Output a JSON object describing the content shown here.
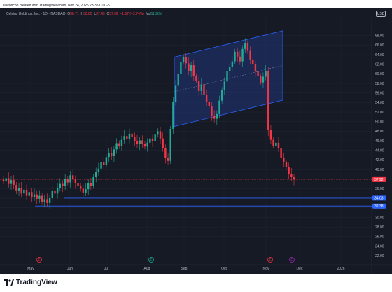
{
  "page": {
    "topline": "lavtoncho created with TradingView.com, Nov 24, 2025 23:35 UTC-5",
    "currency": "USD",
    "brand": "TradingView"
  },
  "legend": {
    "title": "Celsius Holdings, Inc. · 1D · NASDAQ",
    "open_label": "O",
    "open": "38.71",
    "high_label": "H",
    "high": "38.80",
    "low_label": "L",
    "low": "37.45",
    "close_label": "C",
    "close": "37.92",
    "change": "−1.07 (−2.74%)",
    "vol_label": "Vol",
    "vol": "11.28M"
  },
  "colors": {
    "up": "#22ab94",
    "down": "#f23645",
    "line": "#2962ff",
    "channel_fill": "#1e3a8a"
  },
  "chart_data": {
    "type": "candlestick",
    "title": "Celsius Holdings, Inc. · 1D · NASDAQ",
    "ylim": [
      21,
      70
    ],
    "y_ticks": [
      "68.00",
      "66.00",
      "64.00",
      "62.00",
      "60.00",
      "58.00",
      "56.00",
      "54.00",
      "52.00",
      "50.00",
      "48.00",
      "46.00",
      "44.00",
      "42.00",
      "40.00",
      "38.00",
      "36.00",
      "34.00",
      "32.00",
      "30.00",
      "28.00",
      "26.00",
      "24.00",
      "22.00"
    ],
    "x_ticks": [
      "May",
      "Jun",
      "Jul",
      "Aug",
      "Sep",
      "Oct",
      "Nov",
      "Dec",
      "2026"
    ],
    "price_labels": [
      {
        "value": 37.92,
        "text": "37.92",
        "color": "#f23645"
      },
      {
        "value": 34.03,
        "text": "34.03",
        "color": "#2962ff"
      },
      {
        "value": 32.38,
        "text": "32.38",
        "color": "#2962ff"
      }
    ],
    "horizontal_lines": [
      34.03,
      32.38
    ],
    "channel": {
      "upper": [
        63.5,
        69.0
      ],
      "lower": [
        49.0,
        54.5
      ]
    },
    "event_markers": [
      "E",
      "E",
      "E",
      "E",
      "⚡"
    ],
    "closes": [
      37.5,
      38.2,
      37.0,
      37.8,
      36.8,
      35.5,
      36.2,
      35.0,
      35.8,
      34.5,
      35.3,
      34.2,
      34.8,
      33.9,
      34.5,
      33.2,
      33.8,
      33.0,
      34.0,
      35.5,
      35.0,
      36.2,
      37.0,
      36.5,
      38.0,
      37.3,
      38.8,
      38.0,
      37.2,
      36.5,
      36.0,
      35.2,
      35.9,
      37.2,
      36.6,
      38.4,
      39.5,
      40.2,
      41.5,
      41.0,
      42.6,
      43.5,
      42.8,
      44.2,
      45.5,
      44.9,
      46.2,
      47.0,
      46.4,
      47.5,
      46.8,
      46.0,
      45.3,
      46.1,
      45.4,
      44.8,
      45.6,
      46.5,
      45.9,
      47.3,
      48.0,
      46.5,
      44.5,
      42.5,
      41.8,
      48.5,
      54.2,
      57.5,
      60.0,
      62.5,
      63.5,
      62.2,
      60.5,
      61.8,
      59.5,
      58.6,
      56.4,
      57.8,
      55.6,
      54.2,
      53.2,
      51.2,
      50.6,
      51.6,
      54.4,
      56.6,
      58.4,
      60.6,
      61.4,
      62.6,
      64.6,
      63.6,
      62.6,
      65.2,
      66.4,
      64.8,
      63.0,
      62.0,
      60.6,
      59.5,
      58.2,
      59.4,
      60.6,
      48.2,
      46.2,
      45.0,
      45.6,
      44.4,
      42.5,
      41.5,
      40.5,
      39.1,
      38.4,
      37.92
    ]
  }
}
